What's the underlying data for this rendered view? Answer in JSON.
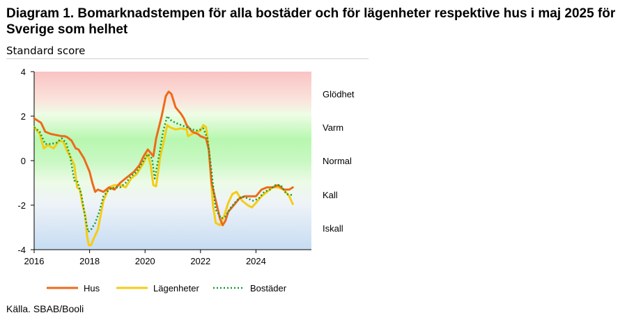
{
  "title": "Diagram 1. Bomarknadstempen för alla bostäder och för lägenheter respektive hus i maj 2025 för Sverige som helhet",
  "subtitle": "Standard score",
  "source": "Källa. SBAB/Booli",
  "colors": {
    "hus": "#ee6a1a",
    "lagenheter": "#f5cc14",
    "bostader": "#1a9a30"
  },
  "chart_data": {
    "type": "line",
    "ylabel": "Standard score",
    "xlim": [
      2016,
      2026
    ],
    "ylim": [
      -4,
      4
    ],
    "x_ticks": [
      "2016",
      "2018",
      "2020",
      "2022",
      "2024"
    ],
    "y_ticks": [
      "4",
      "2",
      "0",
      "-2",
      "-4"
    ],
    "zones": [
      "Glödhet",
      "Varm",
      "Normal",
      "Kall",
      "Iskall"
    ],
    "legend": [
      "Hus",
      "Lägenheter",
      "Bostäder"
    ],
    "series": [
      {
        "name": "Hus",
        "x": [
          2016.0,
          2016.25,
          2016.4,
          2016.6,
          2016.8,
          2017.0,
          2017.1,
          2017.2,
          2017.35,
          2017.5,
          2017.6,
          2017.8,
          2017.9,
          2018.0,
          2018.1,
          2018.2,
          2018.3,
          2018.5,
          2018.7,
          2018.9,
          2019.1,
          2019.3,
          2019.6,
          2019.8,
          2019.95,
          2020.1,
          2020.3,
          2020.4,
          2020.6,
          2020.75,
          2020.85,
          2020.95,
          2021.1,
          2021.3,
          2021.4,
          2021.5,
          2021.7,
          2021.9,
          2022.0,
          2022.2,
          2022.3,
          2022.4,
          2022.55,
          2022.7,
          2022.8,
          2022.9,
          2023.0,
          2023.2,
          2023.4,
          2023.6,
          2023.8,
          2024.0,
          2024.2,
          2024.4,
          2024.6,
          2024.8,
          2025.0,
          2025.2,
          2025.33
        ],
        "y": [
          1.9,
          1.7,
          1.3,
          1.2,
          1.15,
          1.1,
          1.1,
          1.05,
          0.9,
          0.55,
          0.5,
          0.1,
          -0.2,
          -0.5,
          -1.0,
          -1.4,
          -1.3,
          -1.4,
          -1.2,
          -1.3,
          -1.0,
          -0.8,
          -0.5,
          -0.2,
          0.2,
          0.5,
          0.2,
          1.0,
          2.0,
          2.9,
          3.1,
          3.0,
          2.4,
          2.1,
          1.9,
          1.6,
          1.3,
          1.2,
          1.1,
          1.0,
          0.5,
          -1.0,
          -1.8,
          -2.6,
          -2.9,
          -2.7,
          -2.3,
          -2.0,
          -1.7,
          -1.6,
          -1.6,
          -1.6,
          -1.3,
          -1.2,
          -1.2,
          -1.1,
          -1.3,
          -1.3,
          -1.2
        ]
      },
      {
        "name": "Lägenheter",
        "x": [
          2016.0,
          2016.2,
          2016.35,
          2016.5,
          2016.7,
          2016.9,
          2017.05,
          2017.2,
          2017.3,
          2017.45,
          2017.55,
          2017.65,
          2017.75,
          2017.85,
          2017.9,
          2017.97,
          2018.05,
          2018.15,
          2018.3,
          2018.5,
          2018.7,
          2018.9,
          2019.1,
          2019.3,
          2019.5,
          2019.7,
          2019.9,
          2020.1,
          2020.2,
          2020.3,
          2020.4,
          2020.55,
          2020.7,
          2020.8,
          2020.9,
          2021.1,
          2021.3,
          2021.5,
          2021.55,
          2021.7,
          2021.9,
          2022.0,
          2022.1,
          2022.2,
          2022.3,
          2022.45,
          2022.55,
          2022.7,
          2022.85,
          2023.0,
          2023.15,
          2023.3,
          2023.5,
          2023.7,
          2023.85,
          2024.0,
          2024.2,
          2024.4,
          2024.6,
          2024.8,
          2025.0,
          2025.2,
          2025.33
        ],
        "y": [
          1.5,
          1.2,
          0.55,
          0.7,
          0.55,
          0.9,
          0.85,
          0.4,
          0.2,
          -0.2,
          -1.2,
          -1.3,
          -2.0,
          -2.5,
          -3.3,
          -3.8,
          -3.8,
          -3.5,
          -3.1,
          -1.8,
          -1.2,
          -1.1,
          -1.1,
          -1.2,
          -0.8,
          -0.6,
          -0.2,
          0.3,
          -0.2,
          -1.1,
          -1.15,
          0.2,
          1.0,
          1.6,
          1.5,
          1.4,
          1.45,
          1.4,
          1.1,
          1.2,
          1.3,
          1.35,
          1.6,
          1.5,
          0.5,
          -2.0,
          -2.8,
          -2.9,
          -2.5,
          -1.9,
          -1.5,
          -1.4,
          -1.8,
          -2.0,
          -2.1,
          -1.9,
          -1.6,
          -1.4,
          -1.2,
          -1.2,
          -1.3,
          -1.6,
          -1.95
        ]
      },
      {
        "name": "Bostäder",
        "x": [
          2016.0,
          2016.2,
          2016.4,
          2016.6,
          2016.8,
          2017.0,
          2017.15,
          2017.3,
          2017.45,
          2017.55,
          2017.7,
          2017.85,
          2017.95,
          2018.05,
          2018.2,
          2018.35,
          2018.5,
          2018.7,
          2018.9,
          2019.1,
          2019.3,
          2019.5,
          2019.7,
          2019.9,
          2020.1,
          2020.25,
          2020.35,
          2020.5,
          2020.65,
          2020.8,
          2020.95,
          2021.1,
          2021.3,
          2021.5,
          2021.7,
          2021.9,
          2022.1,
          2022.25,
          2022.4,
          2022.55,
          2022.75,
          2022.9,
          2023.1,
          2023.3,
          2023.5,
          2023.7,
          2023.9,
          2024.1,
          2024.3,
          2024.5,
          2024.7,
          2024.9,
          2025.1,
          2025.33
        ],
        "y": [
          1.5,
          1.3,
          0.75,
          0.75,
          0.8,
          1.0,
          0.8,
          0.2,
          -0.9,
          -0.9,
          -1.5,
          -2.6,
          -3.2,
          -3.1,
          -2.8,
          -2.3,
          -1.6,
          -1.3,
          -1.2,
          -1.2,
          -1.0,
          -0.7,
          -0.5,
          -0.1,
          0.3,
          0.1,
          -0.8,
          0.2,
          1.3,
          2.0,
          1.8,
          1.7,
          1.6,
          1.5,
          1.4,
          1.35,
          1.45,
          1.0,
          -0.5,
          -2.2,
          -2.6,
          -2.5,
          -2.1,
          -1.8,
          -1.6,
          -1.7,
          -1.8,
          -1.7,
          -1.4,
          -1.3,
          -1.1,
          -1.1,
          -1.5,
          -1.55
        ]
      }
    ]
  }
}
